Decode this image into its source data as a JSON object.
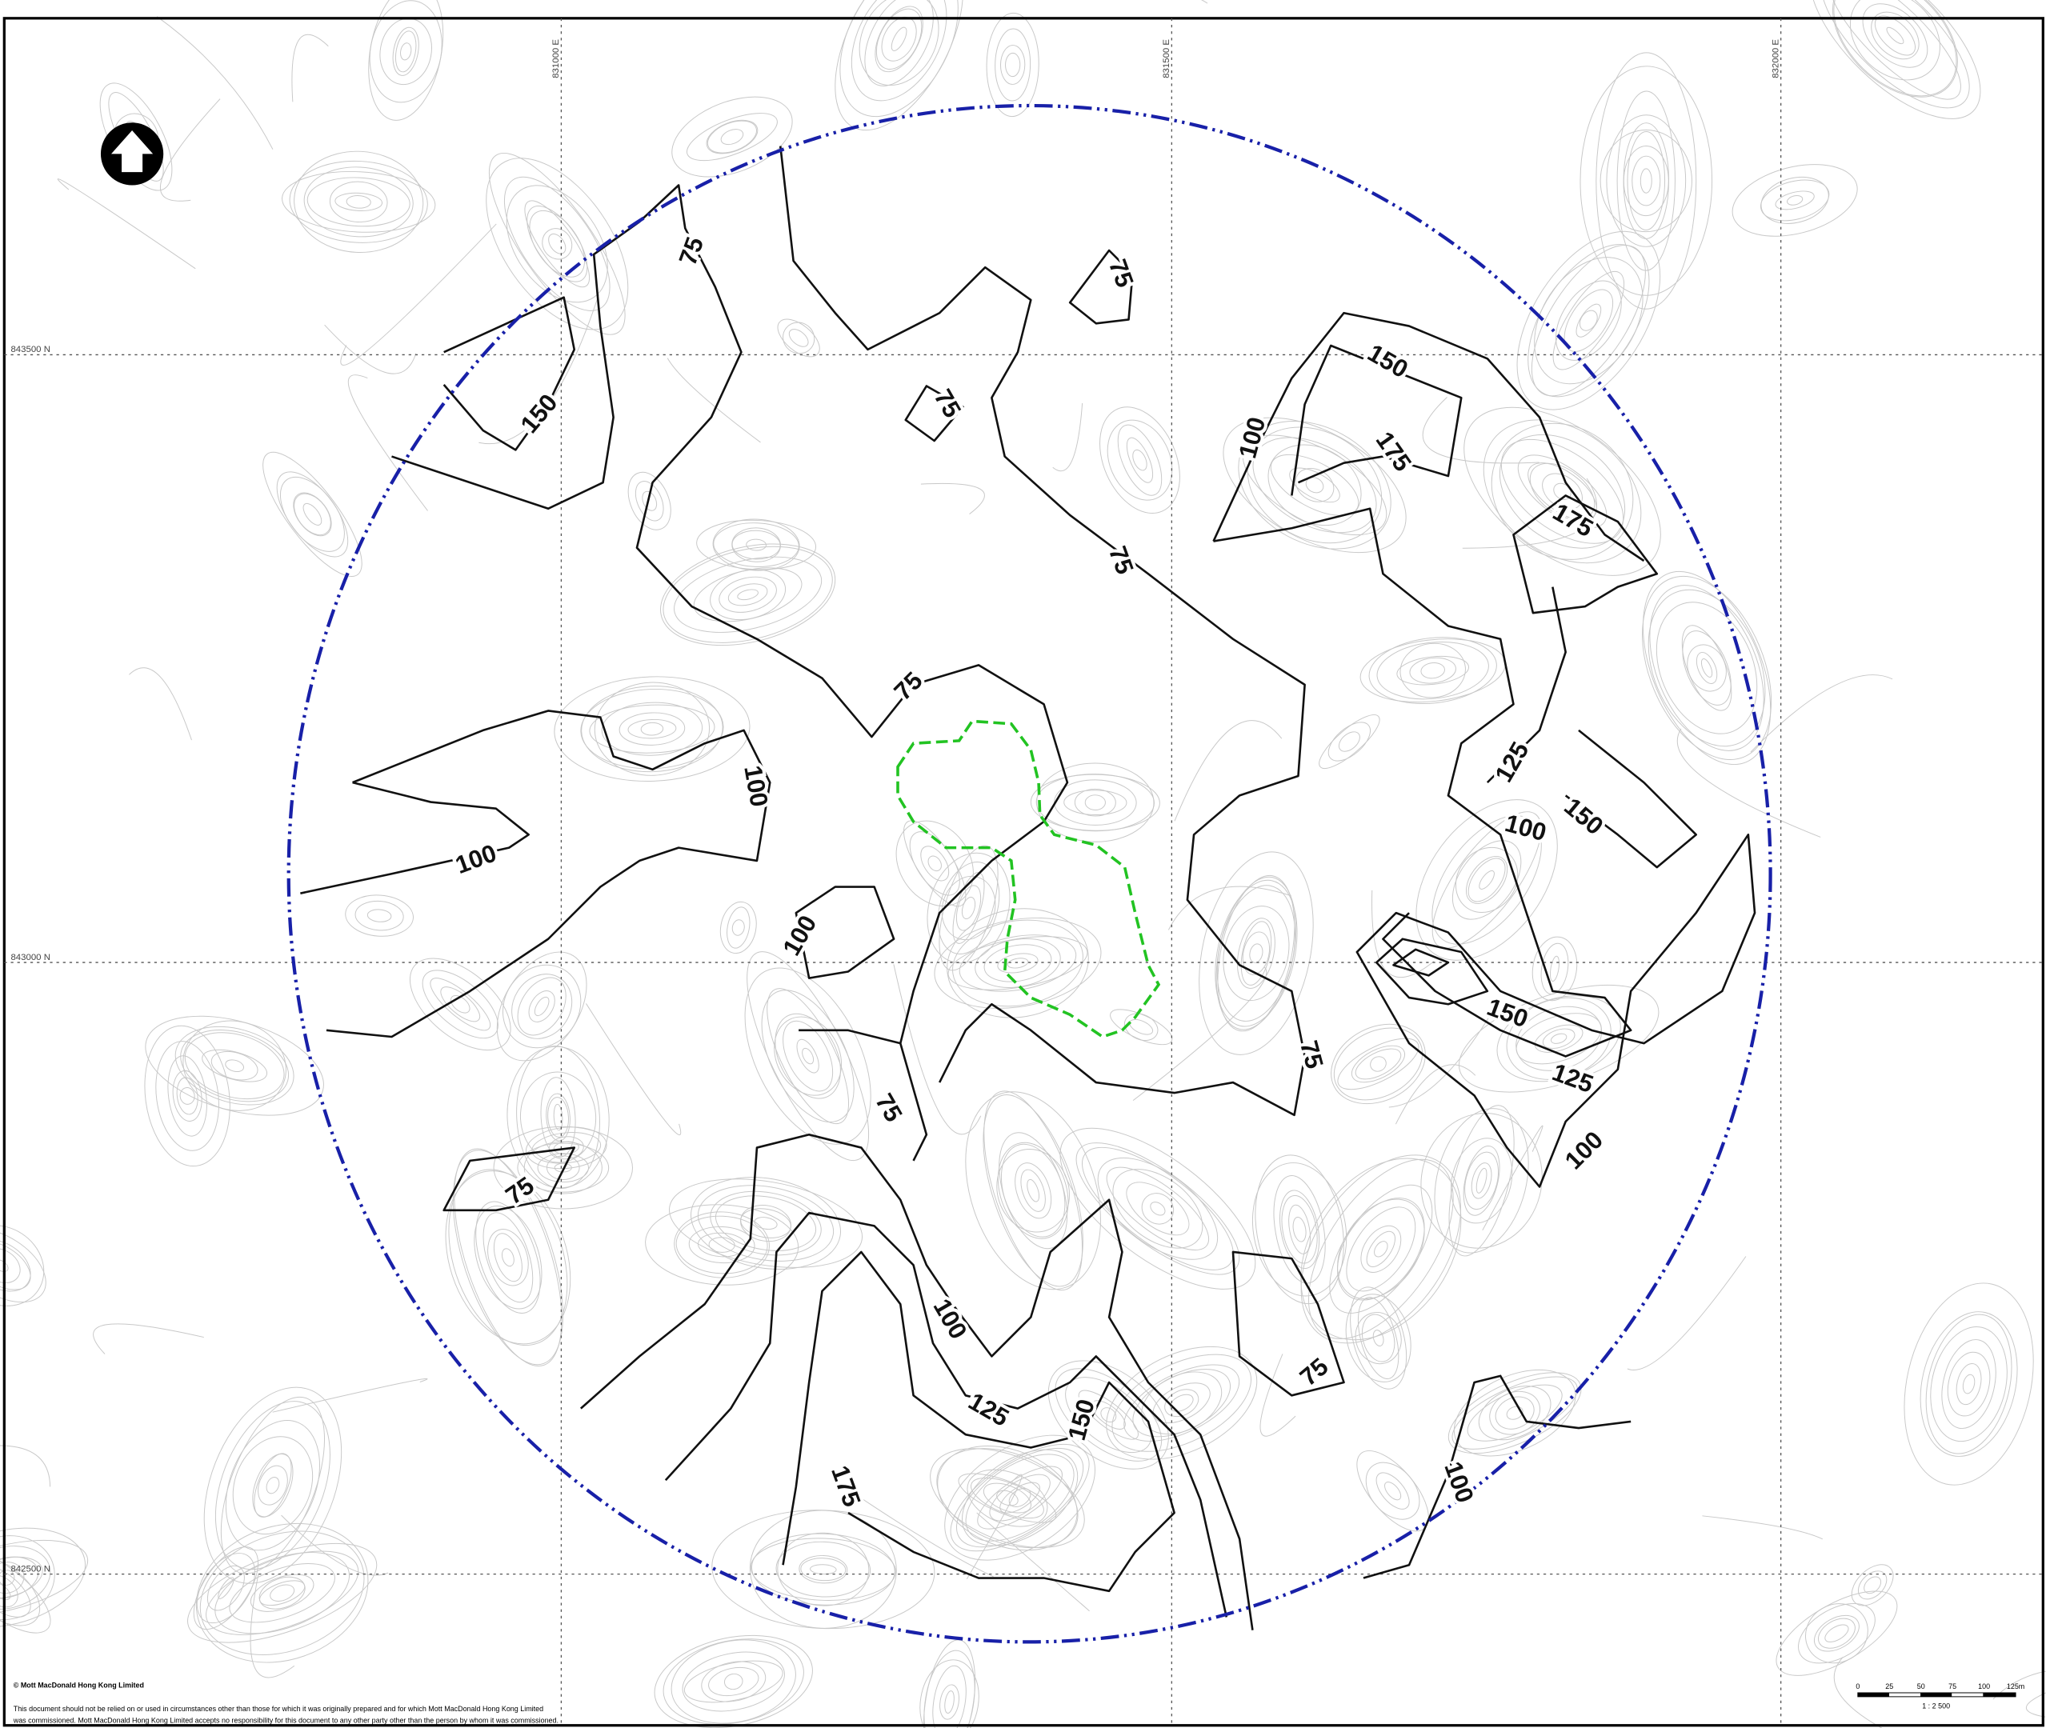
{
  "grid": {
    "eastings": [
      "831000 E",
      "831500 E",
      "832000 E"
    ],
    "northings": [
      "843500 N",
      "843000 N",
      "842500 N"
    ]
  },
  "contour_labels": [
    "75",
    "150",
    "75",
    "75",
    "150",
    "100",
    "175",
    "175",
    "75",
    "75",
    "100",
    "100",
    "100",
    "125",
    "150",
    "100",
    "150",
    "125",
    "75",
    "75",
    "100",
    "75",
    "100",
    "125",
    "150",
    "75",
    "100",
    "175"
  ],
  "footer": {
    "copyright": "© Mott MacDonald Hong Kong Limited",
    "disclaimer": [
      "This document should not be relied on or used in circumstances other than those for which it was originally prepared and for which Mott MacDonald Hong Kong Limited",
      "was commissioned. Mott MacDonald Hong Kong Limited accepts no responsibility for this document to any other party other than the person by whom it was commissioned."
    ]
  },
  "scale": {
    "ticks": [
      "0",
      "25",
      "50",
      "75",
      "100",
      "125m"
    ],
    "ratio": "1 : 2 500"
  }
}
